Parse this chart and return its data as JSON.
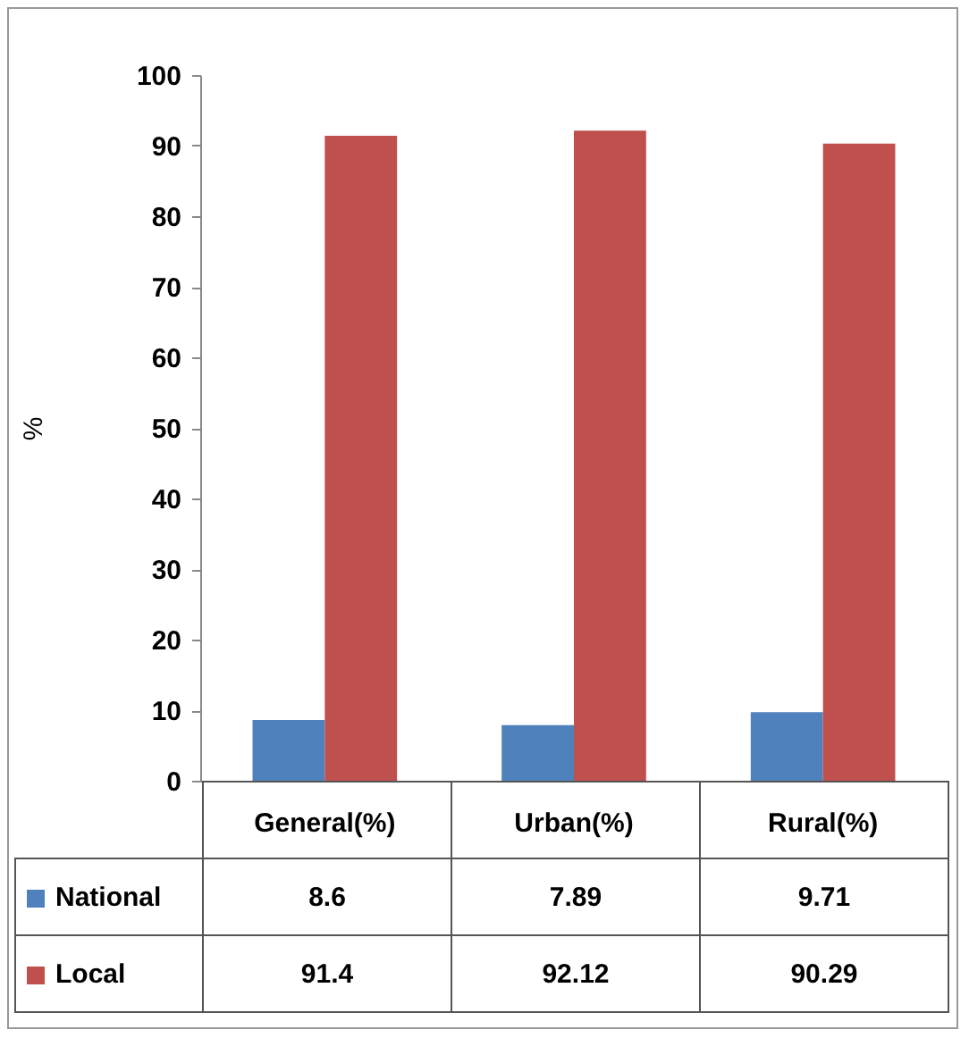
{
  "chart_data": {
    "type": "bar",
    "ylabel": "%",
    "categories": [
      "General(%)",
      "Urban(%)",
      "Rural(%)"
    ],
    "series": [
      {
        "name": "National",
        "color": "#4f81bd",
        "values": [
          8.6,
          7.89,
          9.71
        ]
      },
      {
        "name": "Local",
        "color": "#c0504d",
        "values": [
          91.4,
          92.12,
          90.29
        ]
      }
    ],
    "ylim": [
      0,
      100
    ],
    "yticks": [
      0,
      10,
      20,
      30,
      40,
      50,
      60,
      70,
      80,
      90,
      100
    ],
    "data_labels": true,
    "legend": "bottom left"
  }
}
